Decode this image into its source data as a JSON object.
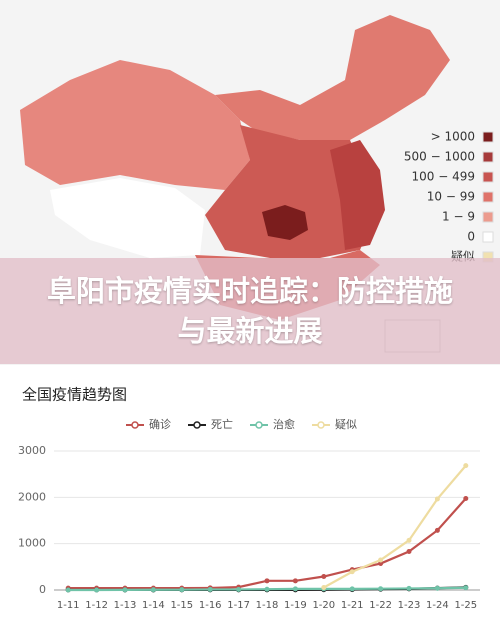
{
  "map": {
    "legend": [
      {
        "label": "> 1000",
        "color": "#7b1d1d"
      },
      {
        "label": "500 − 1000",
        "color": "#a63a3a"
      },
      {
        "label": "100 − 499",
        "color": "#c85450"
      },
      {
        "label": "10 − 99",
        "color": "#df7269"
      },
      {
        "label": "1 − 9",
        "color": "#ec9b8e"
      },
      {
        "label": "0",
        "color": "#ffffff"
      },
      {
        "label": "疑似",
        "color": "#f1e1b0"
      }
    ]
  },
  "banner": {
    "title": "阜阳市疫情实时追踪：防控措施与最新进展"
  },
  "chart_data": {
    "type": "line",
    "title": "全国疫情趋势图",
    "categories": [
      "1-11",
      "1-12",
      "1-13",
      "1-14",
      "1-15",
      "1-16",
      "1-17",
      "1-18",
      "1-19",
      "1-20",
      "1-21",
      "1-22",
      "1-23",
      "1-24",
      "1-25"
    ],
    "series": [
      {
        "name": "确诊",
        "color": "#c0504d",
        "values": [
          41,
          41,
          41,
          41,
          41,
          45,
          62,
          198,
          198,
          291,
          440,
          571,
          830,
          1287,
          1975
        ]
      },
      {
        "name": "死亡",
        "color": "#222222",
        "values": [
          1,
          1,
          1,
          1,
          2,
          2,
          2,
          3,
          3,
          6,
          9,
          17,
          25,
          41,
          56
        ]
      },
      {
        "name": "治愈",
        "color": "#6fc3a8",
        "values": [
          0,
          0,
          2,
          5,
          7,
          12,
          12,
          17,
          25,
          25,
          25,
          28,
          34,
          38,
          49
        ]
      },
      {
        "name": "疑似",
        "color": "#eedca0",
        "values": [
          null,
          null,
          null,
          null,
          null,
          null,
          null,
          null,
          null,
          54,
          393,
          648,
          1072,
          1965,
          2684
        ]
      }
    ],
    "ylim": [
      0,
      3000
    ],
    "yticks": [
      0,
      1000,
      2000,
      3000
    ],
    "grid": true
  }
}
